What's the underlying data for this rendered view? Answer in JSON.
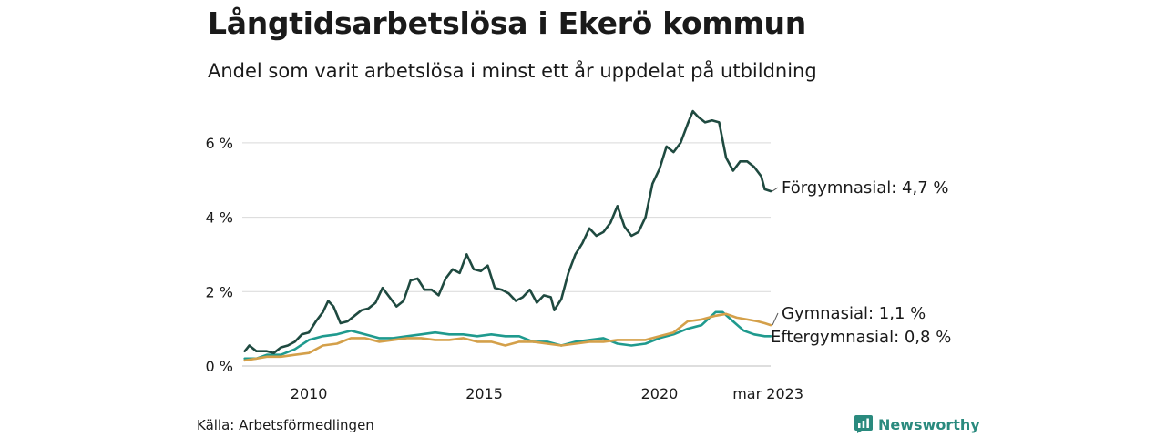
{
  "header": {
    "title": "Långtidsarbetslösa i Ekerö kommun",
    "subtitle": "Andel som varit arbetslösa i minst ett år uppdelat på utbildning"
  },
  "footer": {
    "source": "Källa: Arbetsförmedlingen",
    "brand": "Newsworthy",
    "brand_icon": "newsworthy-logo-icon"
  },
  "colors": {
    "forgymnasial": "#1f4a40",
    "gymnasial": "#d4a04a",
    "eftergymnasial": "#1f9a8e",
    "grid": "#d9d9d9",
    "brand": "#2a8a7e"
  },
  "chart_data": {
    "type": "line",
    "x_unit": "year",
    "xlim": [
      2008.1,
      2023.17
    ],
    "ylim": [
      0,
      7
    ],
    "y_ticks": [
      0,
      2,
      4,
      6
    ],
    "y_tick_labels": [
      "0 %",
      "2 %",
      "4 %",
      "6 %"
    ],
    "x_ticks": [
      2010,
      2015,
      2020,
      2023.17
    ],
    "x_tick_labels": [
      "2010",
      "2015",
      "2020",
      "mar 2023"
    ],
    "grid": "horizontal",
    "series": [
      {
        "name": "Förgymnasial",
        "end_label": "Förgymnasial: 4,7 %",
        "color": "#1f4a40",
        "points": [
          [
            2008.17,
            0.4
          ],
          [
            2008.3,
            0.55
          ],
          [
            2008.5,
            0.4
          ],
          [
            2008.8,
            0.4
          ],
          [
            2009.0,
            0.35
          ],
          [
            2009.2,
            0.5
          ],
          [
            2009.4,
            0.55
          ],
          [
            2009.6,
            0.65
          ],
          [
            2009.8,
            0.85
          ],
          [
            2010.0,
            0.9
          ],
          [
            2010.2,
            1.2
          ],
          [
            2010.4,
            1.45
          ],
          [
            2010.55,
            1.75
          ],
          [
            2010.7,
            1.6
          ],
          [
            2010.9,
            1.15
          ],
          [
            2011.1,
            1.2
          ],
          [
            2011.3,
            1.35
          ],
          [
            2011.5,
            1.5
          ],
          [
            2011.7,
            1.55
          ],
          [
            2011.9,
            1.7
          ],
          [
            2012.1,
            2.1
          ],
          [
            2012.3,
            1.85
          ],
          [
            2012.5,
            1.6
          ],
          [
            2012.7,
            1.75
          ],
          [
            2012.9,
            2.3
          ],
          [
            2013.1,
            2.35
          ],
          [
            2013.3,
            2.05
          ],
          [
            2013.5,
            2.05
          ],
          [
            2013.7,
            1.9
          ],
          [
            2013.9,
            2.35
          ],
          [
            2014.1,
            2.6
          ],
          [
            2014.3,
            2.5
          ],
          [
            2014.5,
            3.0
          ],
          [
            2014.7,
            2.6
          ],
          [
            2014.9,
            2.55
          ],
          [
            2015.1,
            2.7
          ],
          [
            2015.3,
            2.1
          ],
          [
            2015.5,
            2.05
          ],
          [
            2015.7,
            1.95
          ],
          [
            2015.9,
            1.75
          ],
          [
            2016.1,
            1.85
          ],
          [
            2016.3,
            2.05
          ],
          [
            2016.5,
            1.7
          ],
          [
            2016.7,
            1.9
          ],
          [
            2016.9,
            1.85
          ],
          [
            2017.0,
            1.5
          ],
          [
            2017.2,
            1.8
          ],
          [
            2017.4,
            2.5
          ],
          [
            2017.6,
            3.0
          ],
          [
            2017.8,
            3.3
          ],
          [
            2018.0,
            3.7
          ],
          [
            2018.2,
            3.5
          ],
          [
            2018.4,
            3.6
          ],
          [
            2018.6,
            3.85
          ],
          [
            2018.8,
            4.3
          ],
          [
            2019.0,
            3.75
          ],
          [
            2019.2,
            3.5
          ],
          [
            2019.4,
            3.6
          ],
          [
            2019.6,
            4.0
          ],
          [
            2019.8,
            4.9
          ],
          [
            2020.0,
            5.3
          ],
          [
            2020.2,
            5.9
          ],
          [
            2020.4,
            5.75
          ],
          [
            2020.6,
            6.0
          ],
          [
            2020.8,
            6.5
          ],
          [
            2020.95,
            6.85
          ],
          [
            2021.1,
            6.7
          ],
          [
            2021.3,
            6.55
          ],
          [
            2021.5,
            6.6
          ],
          [
            2021.7,
            6.55
          ],
          [
            2021.9,
            5.6
          ],
          [
            2022.1,
            5.25
          ],
          [
            2022.3,
            5.5
          ],
          [
            2022.5,
            5.5
          ],
          [
            2022.7,
            5.35
          ],
          [
            2022.9,
            5.1
          ],
          [
            2023.0,
            4.75
          ],
          [
            2023.17,
            4.7
          ]
        ]
      },
      {
        "name": "Gymnasial",
        "end_label": "Gymnasial: 1,1 %",
        "color": "#d4a04a",
        "points": [
          [
            2008.17,
            0.15
          ],
          [
            2008.5,
            0.2
          ],
          [
            2008.8,
            0.25
          ],
          [
            2009.2,
            0.25
          ],
          [
            2009.6,
            0.3
          ],
          [
            2010.0,
            0.35
          ],
          [
            2010.4,
            0.55
          ],
          [
            2010.8,
            0.6
          ],
          [
            2011.2,
            0.75
          ],
          [
            2011.6,
            0.75
          ],
          [
            2012.0,
            0.65
          ],
          [
            2012.4,
            0.7
          ],
          [
            2012.8,
            0.75
          ],
          [
            2013.2,
            0.75
          ],
          [
            2013.6,
            0.7
          ],
          [
            2014.0,
            0.7
          ],
          [
            2014.4,
            0.75
          ],
          [
            2014.8,
            0.65
          ],
          [
            2015.2,
            0.65
          ],
          [
            2015.6,
            0.55
          ],
          [
            2016.0,
            0.65
          ],
          [
            2016.4,
            0.65
          ],
          [
            2016.8,
            0.6
          ],
          [
            2017.2,
            0.55
          ],
          [
            2017.6,
            0.6
          ],
          [
            2018.0,
            0.65
          ],
          [
            2018.4,
            0.65
          ],
          [
            2018.8,
            0.7
          ],
          [
            2019.2,
            0.7
          ],
          [
            2019.6,
            0.7
          ],
          [
            2020.0,
            0.8
          ],
          [
            2020.4,
            0.9
          ],
          [
            2020.8,
            1.2
          ],
          [
            2021.2,
            1.25
          ],
          [
            2021.6,
            1.35
          ],
          [
            2021.9,
            1.4
          ],
          [
            2022.2,
            1.3
          ],
          [
            2022.5,
            1.25
          ],
          [
            2022.8,
            1.2
          ],
          [
            2023.0,
            1.15
          ],
          [
            2023.17,
            1.1
          ]
        ]
      },
      {
        "name": "Eftergymnasial",
        "end_label": "Eftergymnasial: 0,8 %",
        "color": "#1f9a8e",
        "points": [
          [
            2008.17,
            0.2
          ],
          [
            2008.5,
            0.2
          ],
          [
            2008.8,
            0.3
          ],
          [
            2009.2,
            0.3
          ],
          [
            2009.6,
            0.45
          ],
          [
            2010.0,
            0.7
          ],
          [
            2010.4,
            0.8
          ],
          [
            2010.8,
            0.85
          ],
          [
            2011.2,
            0.95
          ],
          [
            2011.6,
            0.85
          ],
          [
            2012.0,
            0.75
          ],
          [
            2012.4,
            0.75
          ],
          [
            2012.8,
            0.8
          ],
          [
            2013.2,
            0.85
          ],
          [
            2013.6,
            0.9
          ],
          [
            2014.0,
            0.85
          ],
          [
            2014.4,
            0.85
          ],
          [
            2014.8,
            0.8
          ],
          [
            2015.2,
            0.85
          ],
          [
            2015.6,
            0.8
          ],
          [
            2016.0,
            0.8
          ],
          [
            2016.4,
            0.65
          ],
          [
            2016.8,
            0.65
          ],
          [
            2017.2,
            0.55
          ],
          [
            2017.6,
            0.65
          ],
          [
            2018.0,
            0.7
          ],
          [
            2018.4,
            0.75
          ],
          [
            2018.8,
            0.6
          ],
          [
            2019.2,
            0.55
          ],
          [
            2019.6,
            0.6
          ],
          [
            2020.0,
            0.75
          ],
          [
            2020.4,
            0.85
          ],
          [
            2020.8,
            1.0
          ],
          [
            2021.2,
            1.1
          ],
          [
            2021.6,
            1.45
          ],
          [
            2021.8,
            1.45
          ],
          [
            2022.1,
            1.2
          ],
          [
            2022.4,
            0.95
          ],
          [
            2022.7,
            0.85
          ],
          [
            2023.0,
            0.8
          ],
          [
            2023.17,
            0.8
          ]
        ]
      }
    ]
  }
}
